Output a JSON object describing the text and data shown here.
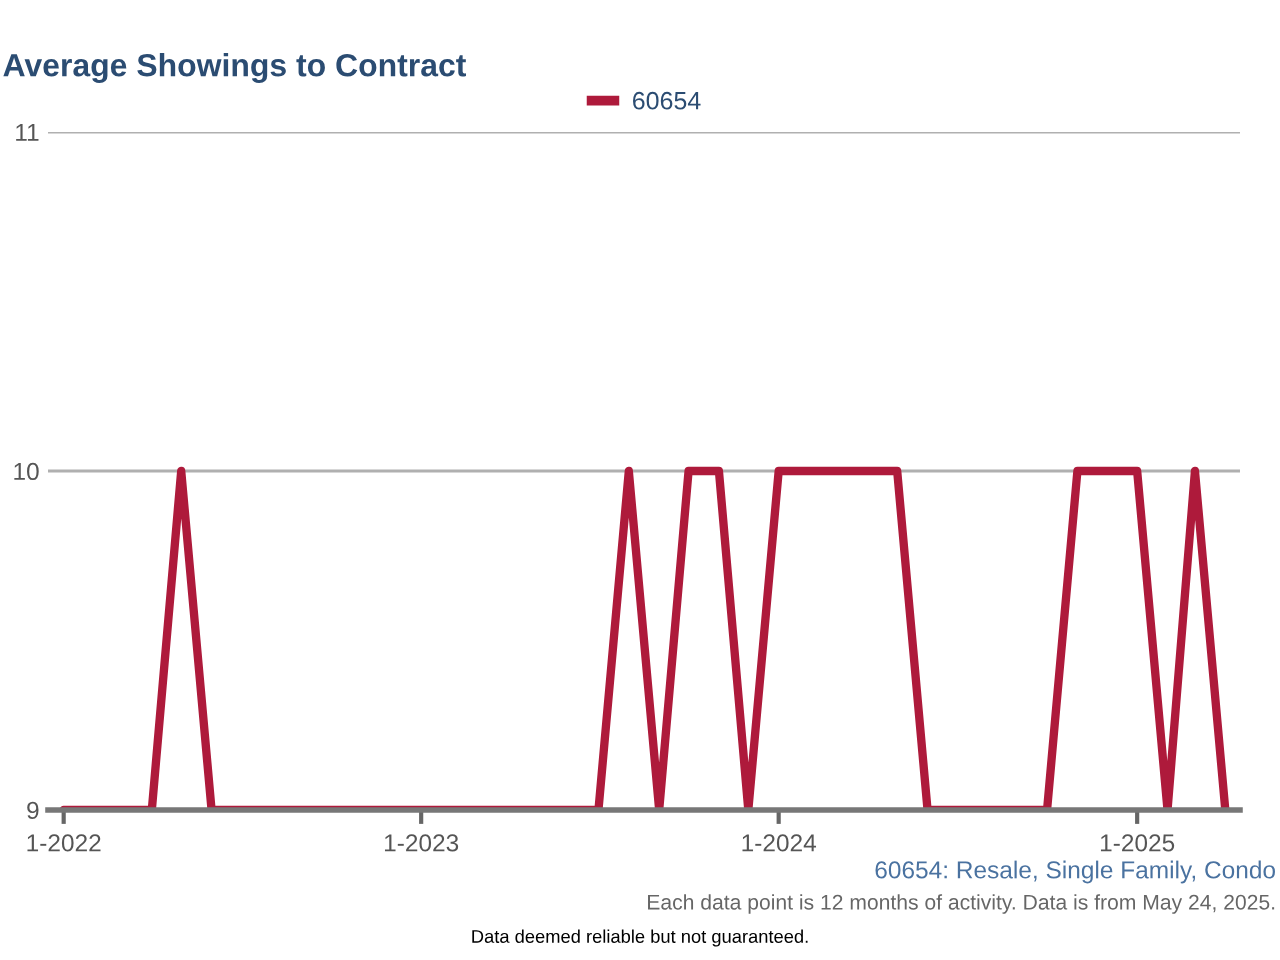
{
  "chart_data": {
    "type": "line",
    "title": "Average Showings to Contract",
    "x": [
      "2022-01",
      "2022-02",
      "2022-03",
      "2022-04",
      "2022-05",
      "2022-06",
      "2022-07",
      "2022-08",
      "2022-09",
      "2022-10",
      "2022-11",
      "2022-12",
      "2023-01",
      "2023-02",
      "2023-03",
      "2023-04",
      "2023-05",
      "2023-06",
      "2023-07",
      "2023-08",
      "2023-09",
      "2023-10",
      "2023-11",
      "2023-12",
      "2024-01",
      "2024-02",
      "2024-03",
      "2024-04",
      "2024-05",
      "2024-06",
      "2024-07",
      "2024-08",
      "2024-09",
      "2024-10",
      "2024-11",
      "2024-12",
      "2025-01",
      "2025-02",
      "2025-03",
      "2025-04"
    ],
    "series": [
      {
        "name": "60654",
        "color": "#ae1a3b",
        "values": [
          9,
          9,
          9,
          9,
          10,
          9,
          9,
          9,
          9,
          9,
          9,
          9,
          9,
          9,
          9,
          9,
          9,
          9,
          9,
          10,
          9,
          10,
          10,
          9,
          10,
          10,
          10,
          10,
          10,
          9,
          9,
          9,
          9,
          9,
          10,
          10,
          10,
          9,
          10,
          9
        ]
      }
    ],
    "xlim": [
      "2021-12-16",
      "2025-04-16"
    ],
    "xticks": [
      {
        "value": "2022-01",
        "label": "1-2022"
      },
      {
        "value": "2023-01",
        "label": "1-2023"
      },
      {
        "value": "2024-01",
        "label": "1-2024"
      },
      {
        "value": "2025-01",
        "label": "1-2025"
      }
    ],
    "ylim": [
      9,
      11
    ],
    "yticks": [
      9,
      10,
      11
    ],
    "grid": "y",
    "legend": "top",
    "annotations": [
      "60654: Resale, Single Family, Condo",
      "Each data point is 12 months of activity. Data is from May 24, 2025.",
      "Data deemed reliable but not guaranteed."
    ]
  }
}
